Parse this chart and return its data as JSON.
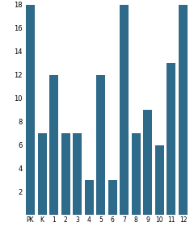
{
  "categories": [
    "PK",
    "K",
    "1",
    "2",
    "3",
    "4",
    "5",
    "6",
    "7",
    "8",
    "9",
    "10",
    "11",
    "12"
  ],
  "values": [
    18,
    7,
    12,
    7,
    7,
    3,
    12,
    3,
    18,
    7,
    9,
    6,
    13,
    18
  ],
  "bar_color": "#2e6a8a",
  "ylim": [
    0,
    18
  ],
  "yticks": [
    2,
    4,
    6,
    8,
    10,
    12,
    14,
    16,
    18
  ],
  "background_color": "#ffffff",
  "figsize": [
    2.4,
    2.96
  ],
  "dpi": 100
}
